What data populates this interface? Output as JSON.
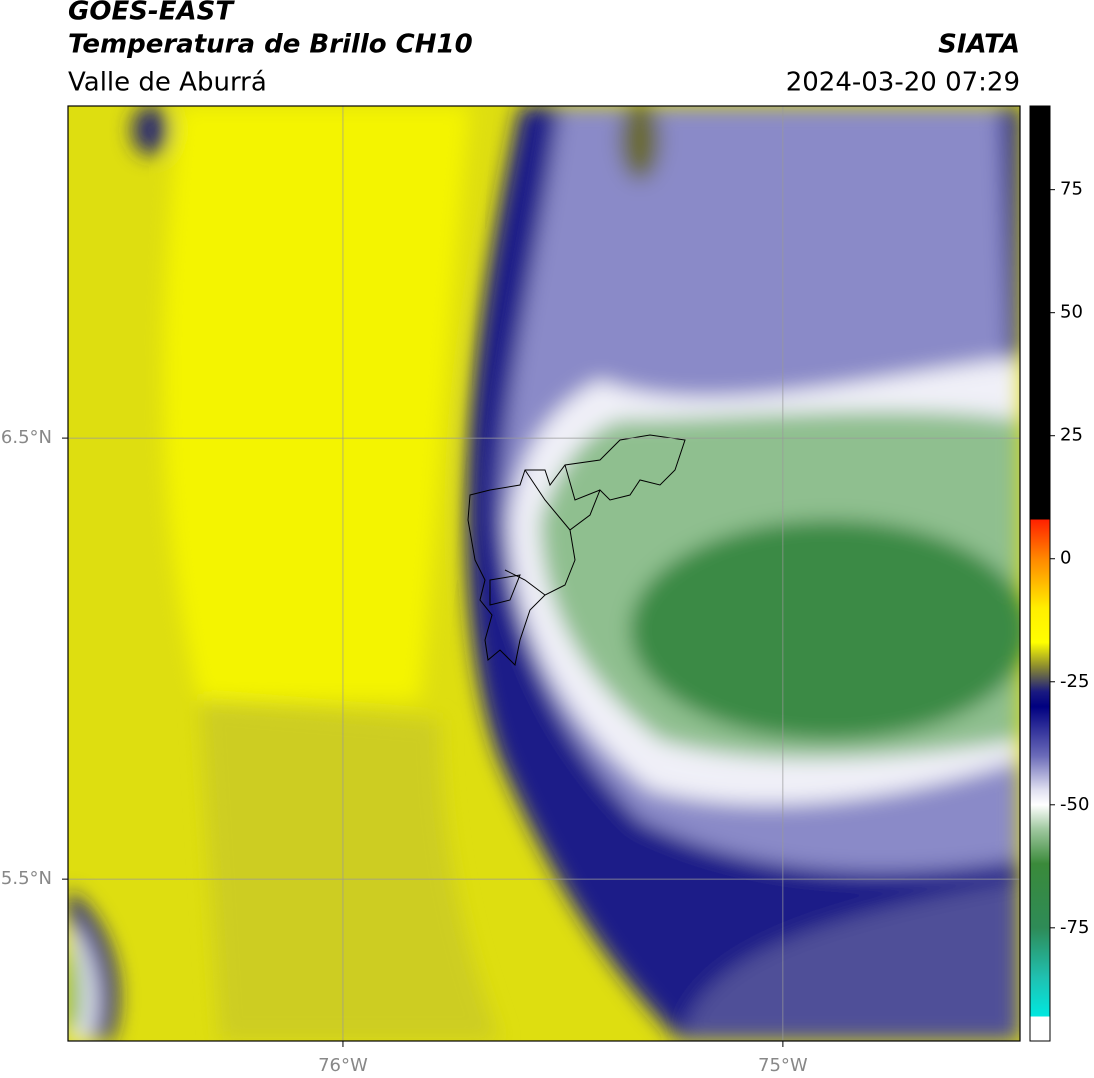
{
  "header": {
    "title": "GOES-EAST",
    "subtitle": "Temperatura de Brillo CH10",
    "region": "Valle de Aburrá",
    "source": "SIATA",
    "timestamp": "2024-03-20 07:29"
  },
  "map": {
    "xlim": [
      -76.625,
      -74.461
    ],
    "ylim": [
      5.133,
      7.253
    ],
    "xticks": [
      {
        "value": -76,
        "label": "76°W"
      },
      {
        "value": -75,
        "label": "75°W"
      }
    ],
    "yticks": [
      {
        "value": 6.5,
        "label": "6.5°N"
      },
      {
        "value": 5.5,
        "label": "5.5°N"
      }
    ],
    "grid": true
  },
  "colorbar": {
    "lim": [
      -98,
      92
    ],
    "ticks": [
      -75,
      -50,
      -25,
      0,
      25,
      50,
      75
    ],
    "stops": [
      {
        "value": 92,
        "color": "#000000"
      },
      {
        "value": 8,
        "color": "#000000"
      },
      {
        "value": 8,
        "color": "#ff2000"
      },
      {
        "value": 0,
        "color": "#ff8800"
      },
      {
        "value": -10,
        "color": "#ffee00"
      },
      {
        "value": -17,
        "color": "#ffff00"
      },
      {
        "value": -22,
        "color": "#8a8a30"
      },
      {
        "value": -27,
        "color": "#1a1a80"
      },
      {
        "value": -30,
        "color": "#000080"
      },
      {
        "value": -40,
        "color": "#6a6ab8"
      },
      {
        "value": -47,
        "color": "#e0e0f0"
      },
      {
        "value": -50,
        "color": "#ffffff"
      },
      {
        "value": -55,
        "color": "#9fc89f"
      },
      {
        "value": -62,
        "color": "#3a8a3a"
      },
      {
        "value": -75,
        "color": "#2e8b57"
      },
      {
        "value": -85,
        "color": "#20c0b0"
      },
      {
        "value": -93,
        "color": "#00e8e0"
      },
      {
        "value": -93,
        "color": "#ffffff"
      },
      {
        "value": -98,
        "color": "#ffffff"
      }
    ]
  }
}
